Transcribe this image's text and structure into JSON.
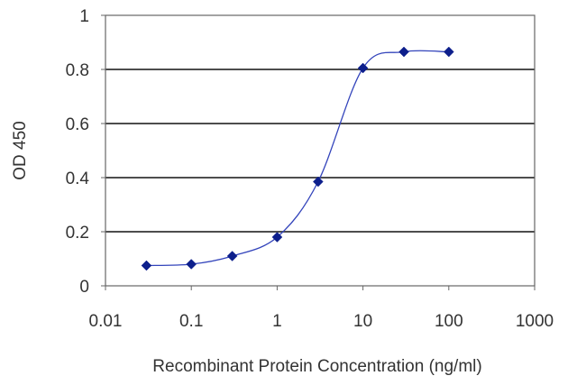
{
  "chart_data": {
    "type": "line",
    "xlabel": "Recombinant Protein Concentration (ng/ml)",
    "ylabel": "OD 450",
    "x_scale": "log",
    "xlim": [
      0.01,
      1000
    ],
    "ylim": [
      0,
      1
    ],
    "x_ticks": [
      "0.01",
      "0.1",
      "1",
      "10",
      "100",
      "1000"
    ],
    "y_ticks": [
      "0",
      "0.2",
      "0.4",
      "0.6",
      "0.8",
      "1"
    ],
    "grid": "horizontal",
    "legend": "none",
    "series": [
      {
        "x": [
          0.03,
          0.1,
          0.3,
          1,
          3,
          10,
          30,
          100
        ],
        "y": [
          0.075,
          0.08,
          0.11,
          0.18,
          0.385,
          0.805,
          0.865,
          0.865
        ]
      }
    ],
    "colors": {
      "line": "#3344bb",
      "marker": "#0d1f8c",
      "grid": "#4d4d4d",
      "axis": "#666666",
      "text": "#333333"
    }
  }
}
